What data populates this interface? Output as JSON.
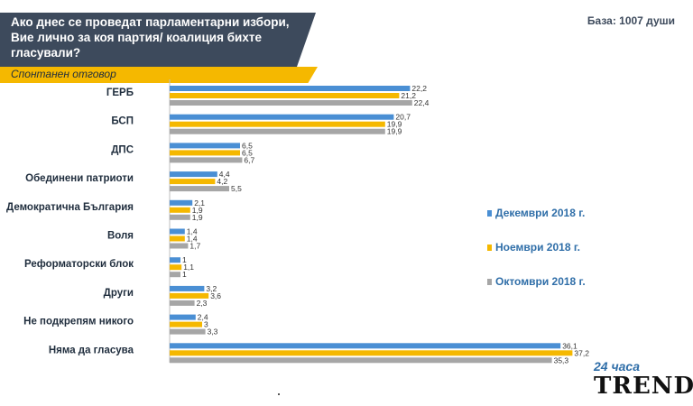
{
  "header": {
    "title": "Ако днес се проведат парламентарни избори, Вие лично за коя партия/ коалиция бихте гласували?",
    "subtitle": "Спонтанен отговор",
    "base": "База: 1007 души"
  },
  "logo": {
    "top": "24 часа",
    "main": "TREND"
  },
  "colors": {
    "dec": "#4a8fd4",
    "nov": "#f5b800",
    "oct": "#a6a6a6",
    "header_bg": "#3d4a5c",
    "subtitle_bg": "#f5b800"
  },
  "chart_data": {
    "type": "bar",
    "orientation": "horizontal",
    "categories": [
      "ГЕРБ",
      "БСП",
      "ДПС",
      "Обединени патриоти",
      "Демократична България",
      "Воля",
      "Реформаторски блок",
      "Други",
      "Не подкрепям никого",
      "Няма да гласува"
    ],
    "series": [
      {
        "name": "Декември 2018 г.",
        "values": [
          22.2,
          20.7,
          6.5,
          4.4,
          2.1,
          1.4,
          1,
          3.2,
          2.4,
          36.1
        ],
        "labels": [
          "22,2",
          "20,7",
          "6,5",
          "4,4",
          "2,1",
          "1,4",
          "1",
          "3,2",
          "2,4",
          "36,1"
        ]
      },
      {
        "name": "Ноември 2018 г.",
        "values": [
          21.2,
          19.9,
          6.5,
          4.2,
          1.9,
          1.4,
          1.1,
          3.6,
          3,
          37.2
        ],
        "labels": [
          "21,2",
          "19,9",
          "6,5",
          "4,2",
          "1,9",
          "1,4",
          "1,1",
          "3,6",
          "3",
          "37,2"
        ]
      },
      {
        "name": "Октомври 2018 г.",
        "values": [
          22.4,
          19.9,
          6.7,
          5.5,
          1.9,
          1.7,
          1,
          2.3,
          3.3,
          35.3
        ],
        "labels": [
          "22,4",
          "19,9",
          "6,7",
          "5,5",
          "1,9",
          "1,7",
          "1",
          "2,3",
          "3,3",
          "35,3"
        ]
      }
    ],
    "legend_position": "right",
    "grid": false
  }
}
